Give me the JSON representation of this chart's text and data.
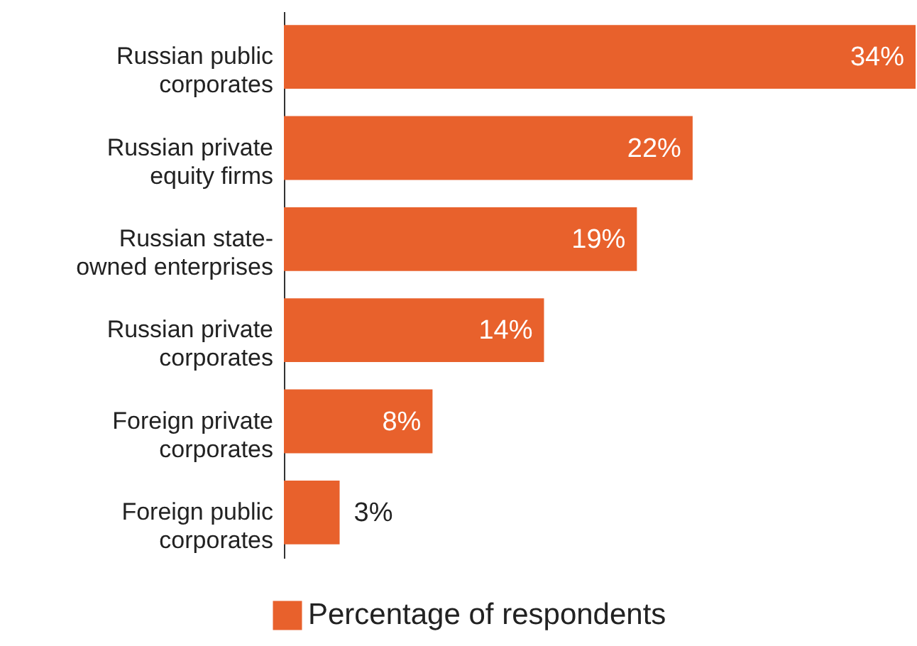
{
  "chart_data": {
    "type": "bar",
    "orientation": "horizontal",
    "categories": [
      "Russian public corporates",
      "Russian private equity firms",
      "Russian state-owned enterprises",
      "Russian private corporates",
      "Foreign private corporates",
      "Foreign public corporates"
    ],
    "series": [
      {
        "name": "Percentage of respondents",
        "color": "#e8612c",
        "values": [
          34,
          22,
          19,
          14,
          8,
          3
        ],
        "value_labels": [
          "34%",
          "22%",
          "19%",
          "14%",
          "8%",
          "3%"
        ]
      }
    ],
    "legend": "bottom"
  }
}
